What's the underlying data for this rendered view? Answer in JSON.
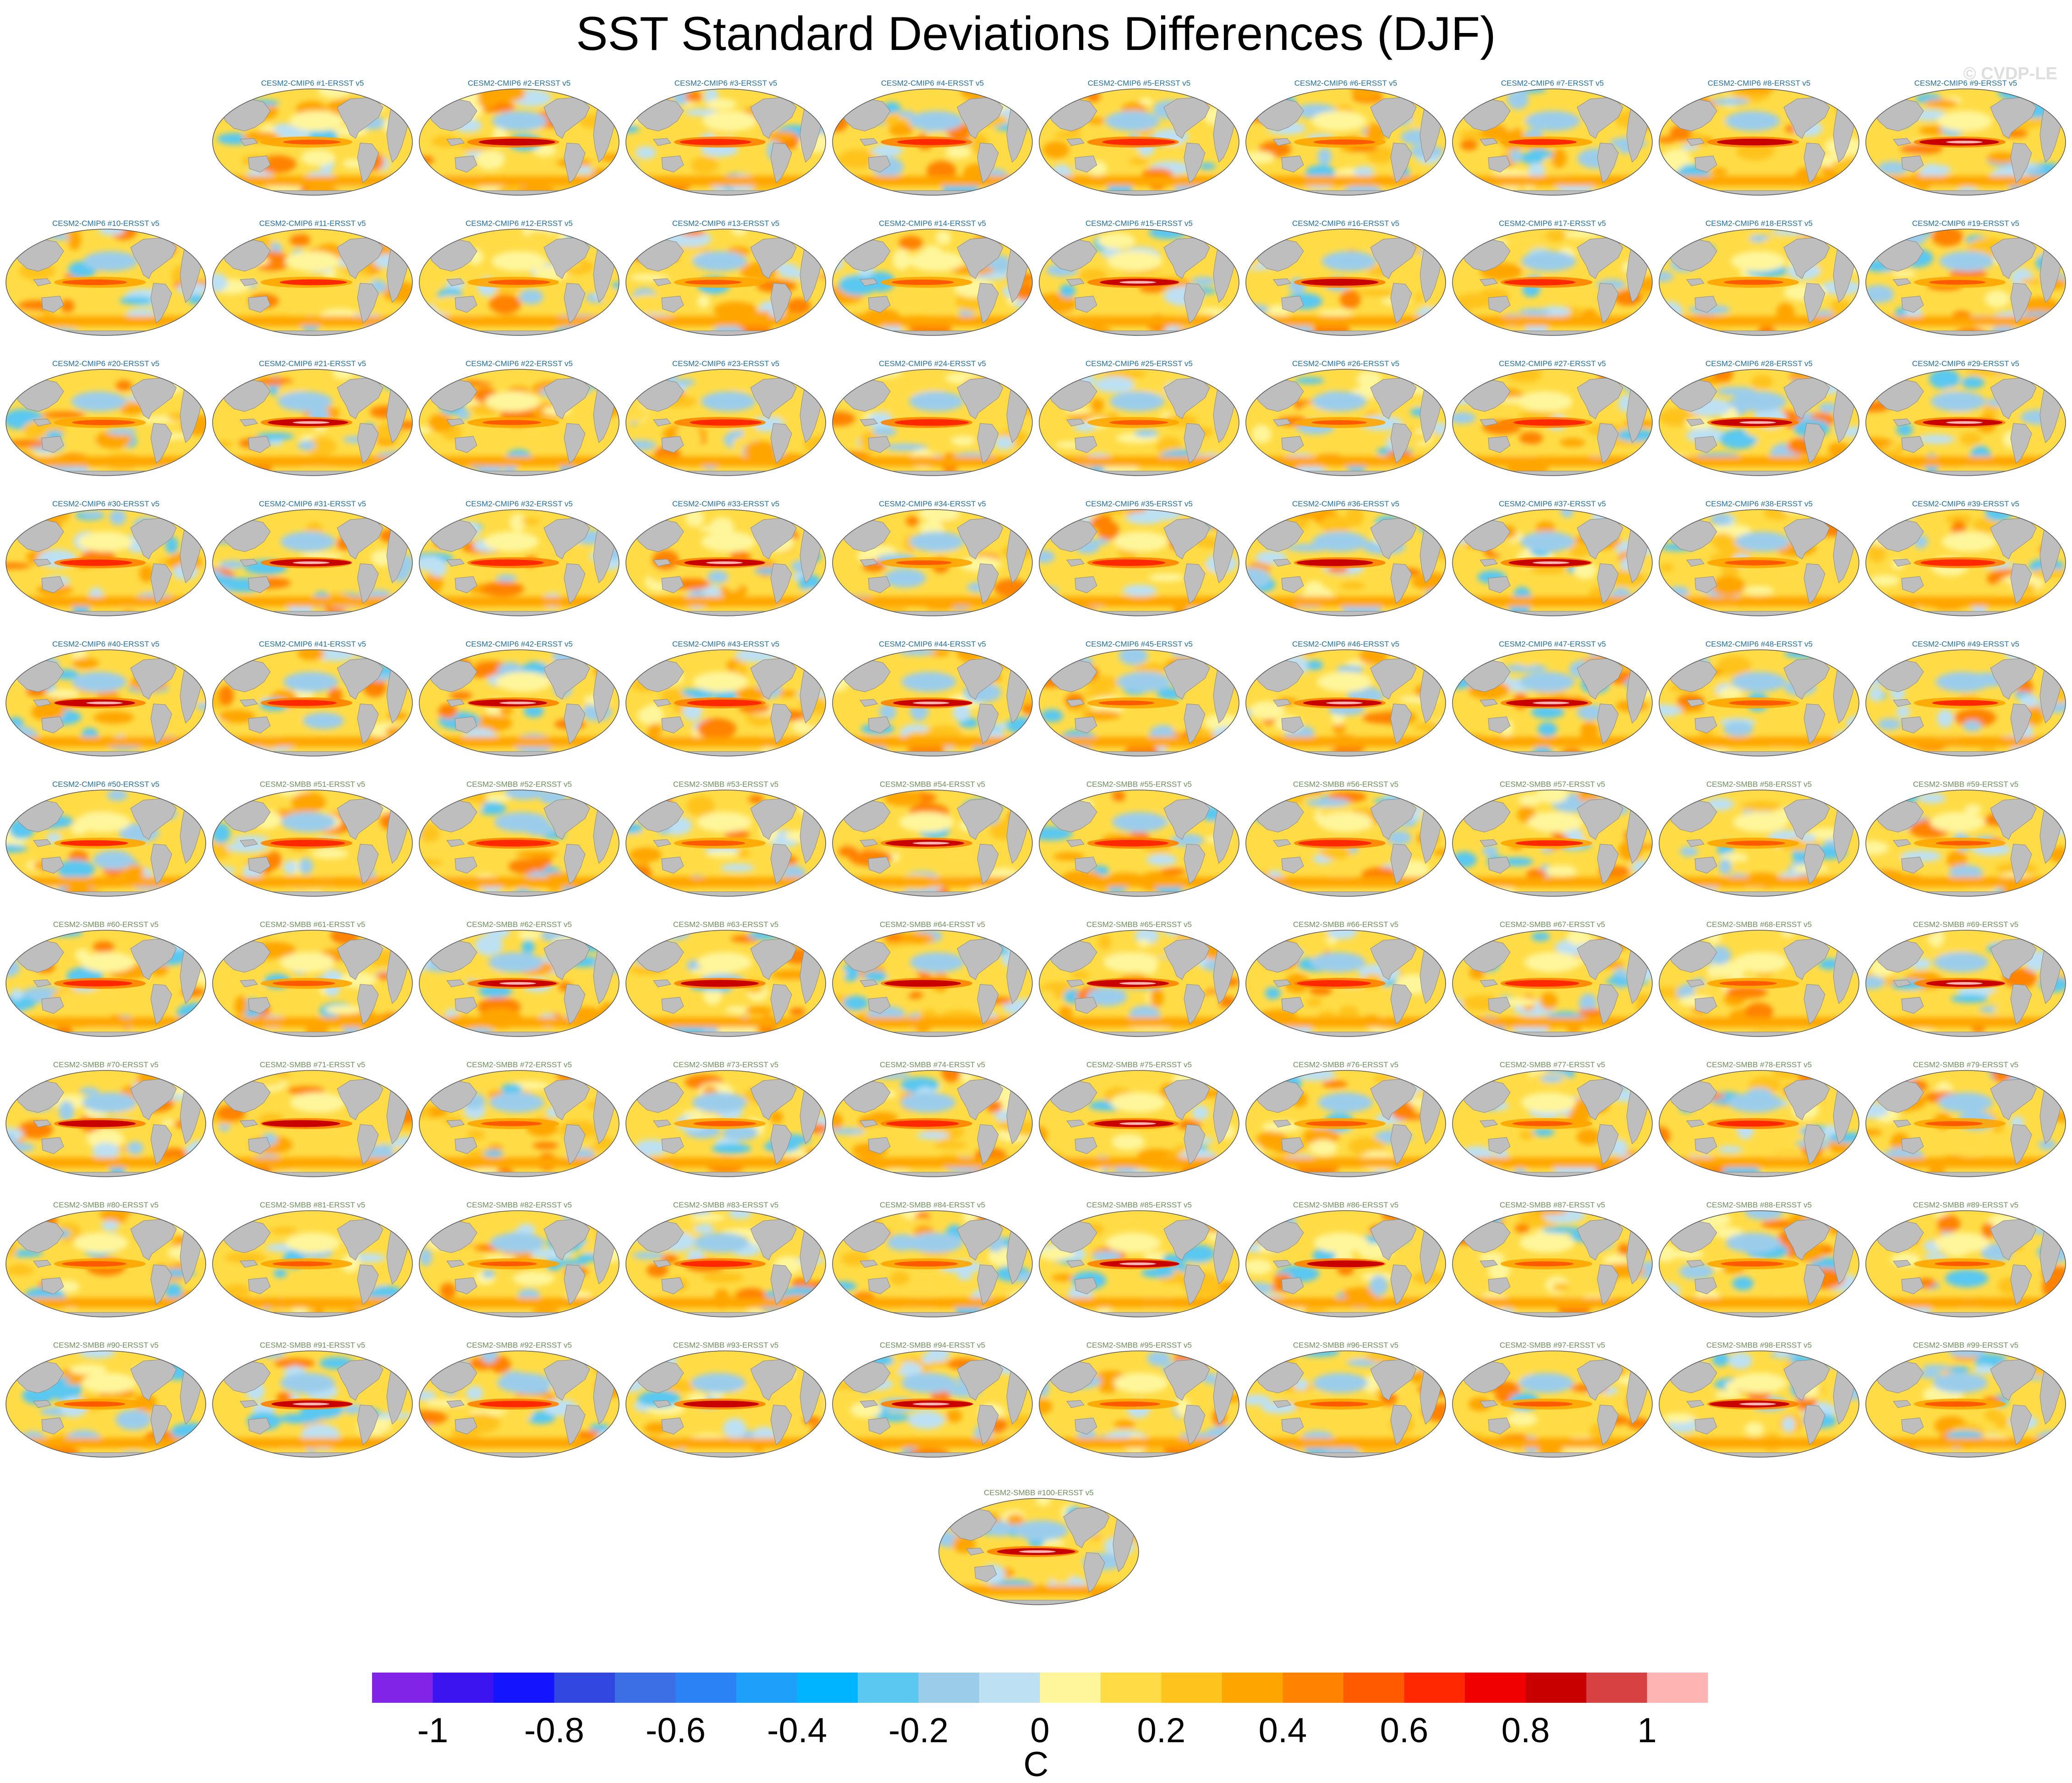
{
  "title": "SST Standard Deviations Differences (DJF)",
  "credit": "© CVDP-LE",
  "chart_data": {
    "type": "heatmap",
    "projection": "Robinson (global map panels)",
    "variable": "SST standard deviation difference (model minus observations), DJF",
    "n_panels": 100,
    "panel_titles": [
      "CESM2-CMIP6 #1-ERSST v5",
      "CESM2-CMIP6 #2-ERSST v5",
      "CESM2-CMIP6 #3-ERSST v5",
      "CESM2-CMIP6 #4-ERSST v5",
      "CESM2-CMIP6 #5-ERSST v5",
      "CESM2-CMIP6 #6-ERSST v5",
      "CESM2-CMIP6 #7-ERSST v5",
      "CESM2-CMIP6 #8-ERSST v5",
      "CESM2-CMIP6 #9-ERSST v5",
      "CESM2-CMIP6 #10-ERSST v5",
      "CESM2-CMIP6 #11-ERSST v5",
      "CESM2-CMIP6 #12-ERSST v5",
      "CESM2-CMIP6 #13-ERSST v5",
      "CESM2-CMIP6 #14-ERSST v5",
      "CESM2-CMIP6 #15-ERSST v5",
      "CESM2-CMIP6 #16-ERSST v5",
      "CESM2-CMIP6 #17-ERSST v5",
      "CESM2-CMIP6 #18-ERSST v5",
      "CESM2-CMIP6 #19-ERSST v5",
      "CESM2-CMIP6 #20-ERSST v5",
      "CESM2-CMIP6 #21-ERSST v5",
      "CESM2-CMIP6 #22-ERSST v5",
      "CESM2-CMIP6 #23-ERSST v5",
      "CESM2-CMIP6 #24-ERSST v5",
      "CESM2-CMIP6 #25-ERSST v5",
      "CESM2-CMIP6 #26-ERSST v5",
      "CESM2-CMIP6 #27-ERSST v5",
      "CESM2-CMIP6 #28-ERSST v5",
      "CESM2-CMIP6 #29-ERSST v5",
      "CESM2-CMIP6 #30-ERSST v5",
      "CESM2-CMIP6 #31-ERSST v5",
      "CESM2-CMIP6 #32-ERSST v5",
      "CESM2-CMIP6 #33-ERSST v5",
      "CESM2-CMIP6 #34-ERSST v5",
      "CESM2-CMIP6 #35-ERSST v5",
      "CESM2-CMIP6 #36-ERSST v5",
      "CESM2-CMIP6 #37-ERSST v5",
      "CESM2-CMIP6 #38-ERSST v5",
      "CESM2-CMIP6 #39-ERSST v5",
      "CESM2-CMIP6 #40-ERSST v5",
      "CESM2-CMIP6 #41-ERSST v5",
      "CESM2-CMIP6 #42-ERSST v5",
      "CESM2-CMIP6 #43-ERSST v5",
      "CESM2-CMIP6 #44-ERSST v5",
      "CESM2-CMIP6 #45-ERSST v5",
      "CESM2-CMIP6 #46-ERSST v5",
      "CESM2-CMIP6 #47-ERSST v5",
      "CESM2-CMIP6 #48-ERSST v5",
      "CESM2-CMIP6 #49-ERSST v5",
      "CESM2-CMIP6 #50-ERSST v5",
      "CESM2-SMBB #51-ERSST v5",
      "CESM2-SMBB #52-ERSST v5",
      "CESM2-SMBB #53-ERSST v5",
      "CESM2-SMBB #54-ERSST v5",
      "CESM2-SMBB #55-ERSST v5",
      "CESM2-SMBB #56-ERSST v5",
      "CESM2-SMBB #57-ERSST v5",
      "CESM2-SMBB #58-ERSST v5",
      "CESM2-SMBB #59-ERSST v5",
      "CESM2-SMBB #60-ERSST v5",
      "CESM2-SMBB #61-ERSST v5",
      "CESM2-SMBB #62-ERSST v5",
      "CESM2-SMBB #63-ERSST v5",
      "CESM2-SMBB #64-ERSST v5",
      "CESM2-SMBB #65-ERSST v5",
      "CESM2-SMBB #66-ERSST v5",
      "CESM2-SMBB #67-ERSST v5",
      "CESM2-SMBB #68-ERSST v5",
      "CESM2-SMBB #69-ERSST v5",
      "CESM2-SMBB #70-ERSST v5",
      "CESM2-SMBB #71-ERSST v5",
      "CESM2-SMBB #72-ERSST v5",
      "CESM2-SMBB #73-ERSST v5",
      "CESM2-SMBB #74-ERSST v5",
      "CESM2-SMBB #75-ERSST v5",
      "CESM2-SMBB #76-ERSST v5",
      "CESM2-SMBB #77-ERSST v5",
      "CESM2-SMBB #78-ERSST v5",
      "CESM2-SMBB #79-ERSST v5",
      "CESM2-SMBB #80-ERSST v5",
      "CESM2-SMBB #81-ERSST v5",
      "CESM2-SMBB #82-ERSST v5",
      "CESM2-SMBB #83-ERSST v5",
      "CESM2-SMBB #84-ERSST v5",
      "CESM2-SMBB #85-ERSST v5",
      "CESM2-SMBB #86-ERSST v5",
      "CESM2-SMBB #87-ERSST v5",
      "CESM2-SMBB #88-ERSST v5",
      "CESM2-SMBB #89-ERSST v5",
      "CESM2-SMBB #90-ERSST v5",
      "CESM2-SMBB #91-ERSST v5",
      "CESM2-SMBB #92-ERSST v5",
      "CESM2-SMBB #93-ERSST v5",
      "CESM2-SMBB #94-ERSST v5",
      "CESM2-SMBB #95-ERSST v5",
      "CESM2-SMBB #96-ERSST v5",
      "CESM2-SMBB #97-ERSST v5",
      "CESM2-SMBB #98-ERSST v5",
      "CESM2-SMBB #99-ERSST v5",
      "CESM2-SMBB #100-ERSST v5"
    ],
    "colorbar": {
      "unit": "C",
      "levels": [
        -1.1,
        -1,
        -0.9,
        -0.8,
        -0.7,
        -0.6,
        -0.5,
        -0.4,
        -0.3,
        -0.2,
        -0.1,
        0,
        0.1,
        0.2,
        0.3,
        0.4,
        0.5,
        0.6,
        0.7,
        0.8,
        0.9,
        1,
        1.1
      ],
      "tick_labels": [
        "-1",
        "-0.8",
        "-0.6",
        "-0.4",
        "-0.2",
        "0",
        "0.2",
        "0.4",
        "0.6",
        "0.8",
        "1"
      ],
      "tick_values": [
        -1,
        -0.8,
        -0.6,
        -0.4,
        -0.2,
        0,
        0.2,
        0.4,
        0.6,
        0.8,
        1
      ],
      "colors": [
        "#8224e8",
        "#3c14f0",
        "#1414ff",
        "#3246e0",
        "#3c6ee6",
        "#2a82f4",
        "#1ea0fa",
        "#00b4ff",
        "#5ac8f0",
        "#9bcdeb",
        "#bde1f3",
        "#fff59b",
        "#ffdc46",
        "#ffc31e",
        "#ffa500",
        "#ff8200",
        "#ff5a00",
        "#ff2800",
        "#f00000",
        "#c80000",
        "#d74141",
        "#ffb4b4"
      ]
    },
    "land_color": "#bebebe",
    "series_colors": {
      "cmip6_label": "#1f6fa8",
      "smbb_label": "#6f8f5a"
    }
  }
}
